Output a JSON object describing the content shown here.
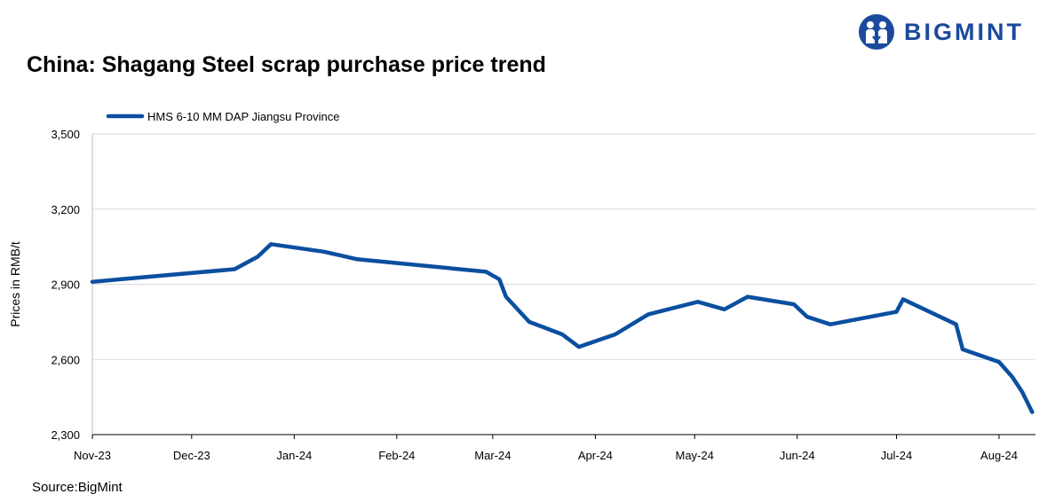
{
  "brand": {
    "name": "BIGMINT",
    "logo_icon": "bigmint-logo-icon",
    "color": "#1a4a9c"
  },
  "source": "Source:BigMint",
  "chart_data": {
    "type": "line",
    "title": "China: Shagang Steel scrap purchase price trend",
    "xlabel": "",
    "ylabel": "Prices in RMB/t",
    "ylim": [
      2300,
      3500
    ],
    "yticks": [
      2300,
      2600,
      2900,
      3200,
      3500
    ],
    "ytick_labels": [
      "2,300",
      "2,600",
      "2,900",
      "3,200",
      "3,500"
    ],
    "xtick_labels": [
      "Nov-23",
      "Dec-23",
      "Jan-24",
      "Feb-24",
      "Mar-24",
      "Apr-24",
      "May-24",
      "Jun-24",
      "Jul-24",
      "Aug-24"
    ],
    "x_start": "2023-11-01",
    "x_end": "2024-08-12",
    "grid": true,
    "legend": "top-left",
    "series": [
      {
        "name": "HMS 6-10 MM DAP Jiangsu Province",
        "color": "#0b4fa0",
        "x": [
          "2023-11-01",
          "2023-12-14",
          "2023-12-21",
          "2023-12-25",
          "2024-01-10",
          "2024-01-20",
          "2024-02-28",
          "2024-03-03",
          "2024-03-05",
          "2024-03-12",
          "2024-03-22",
          "2024-03-27",
          "2024-04-07",
          "2024-04-17",
          "2024-05-02",
          "2024-05-10",
          "2024-05-17",
          "2024-05-31",
          "2024-06-04",
          "2024-06-11",
          "2024-07-01",
          "2024-07-03",
          "2024-07-19",
          "2024-07-21",
          "2024-08-01",
          "2024-08-05",
          "2024-08-08",
          "2024-08-11"
        ],
        "values": [
          2910,
          2960,
          3010,
          3060,
          3030,
          3000,
          2950,
          2920,
          2850,
          2750,
          2700,
          2650,
          2700,
          2780,
          2830,
          2800,
          2850,
          2820,
          2770,
          2740,
          2790,
          2840,
          2740,
          2640,
          2590,
          2530,
          2470,
          2390
        ]
      }
    ]
  }
}
